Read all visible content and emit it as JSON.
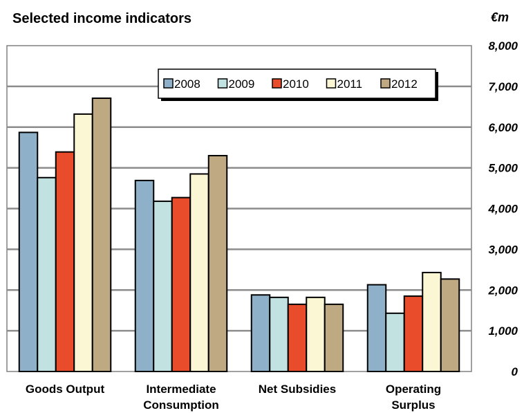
{
  "chart_data": {
    "type": "bar",
    "title": "Selected income indicators",
    "unit_label": "€m",
    "categories": [
      [
        "Goods Output"
      ],
      [
        "Intermediate",
        "Consumption"
      ],
      [
        "Net Subsidies"
      ],
      [
        "Operating",
        "Surplus"
      ]
    ],
    "series": [
      {
        "name": "2008",
        "values": [
          5870,
          4690,
          1880,
          2130
        ],
        "color": "#8eb0c8"
      },
      {
        "name": "2009",
        "values": [
          4760,
          4180,
          1820,
          1430
        ],
        "color": "#c2e2e2"
      },
      {
        "name": "2010",
        "values": [
          5390,
          4270,
          1650,
          1850
        ],
        "color": "#e84c2b"
      },
      {
        "name": "2011",
        "values": [
          6320,
          4850,
          1820,
          2430
        ],
        "color": "#fbf6d3"
      },
      {
        "name": "2012",
        "values": [
          6710,
          5300,
          1650,
          2270
        ],
        "color": "#bea982"
      }
    ],
    "yticks": [
      "0",
      "1,000",
      "2,000",
      "3,000",
      "4,000",
      "5,000",
      "6,000",
      "7,000",
      "8,000"
    ],
    "ylim": [
      0,
      8000
    ],
    "ytick_step": 1000,
    "grid": true,
    "legend_position": "top-right"
  }
}
